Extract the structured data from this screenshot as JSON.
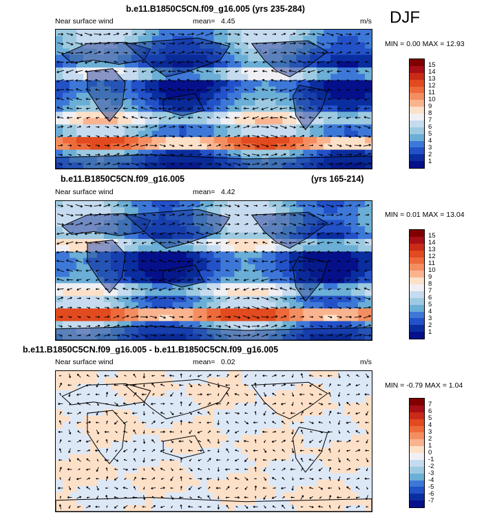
{
  "season": "DJF",
  "panels": [
    {
      "title_left": "b.e11.B1850C5CN.f09_g16.005 (yrs 235-284)",
      "title_right": "",
      "subtitle_left": "Near surface wind",
      "mean_label": "mean=",
      "mean_value": "4.45",
      "units": "m/s",
      "min_max": "MIN =  0.00 MAX =  12.93",
      "colorbar_labels": [
        "15",
        "14",
        "13",
        "12",
        "11",
        "10",
        "9",
        "8",
        "7",
        "6",
        "5",
        "4",
        "3",
        "2",
        "1"
      ],
      "colorbar_colors": [
        "#800000",
        "#a50f15",
        "#cb2a18",
        "#e24a1f",
        "#ee6a3a",
        "#f48e60",
        "#f9b48f",
        "#fde0c8",
        "#f0f0f4",
        "#c6dbef",
        "#9ecae1",
        "#6baed6",
        "#3d78d8",
        "#2251c8",
        "#0a2ea0",
        "#05108a"
      ],
      "style": "speed"
    },
    {
      "title_left": "b.e11.B1850C5CN.f09_g16.005",
      "title_right": "(yrs 165-214)",
      "subtitle_left": "Near surface wind",
      "mean_label": "mean=",
      "mean_value": "4.42",
      "units": "",
      "min_max": "MIN =  0.01 MAX =  13.04",
      "colorbar_labels": [
        "15",
        "14",
        "13",
        "12",
        "11",
        "10",
        "9",
        "8",
        "7",
        "6",
        "5",
        "4",
        "3",
        "2",
        "1"
      ],
      "colorbar_colors": [
        "#800000",
        "#a50f15",
        "#cb2a18",
        "#e24a1f",
        "#ee6a3a",
        "#f48e60",
        "#f9b48f",
        "#fde0c8",
        "#f0f0f4",
        "#c6dbef",
        "#9ecae1",
        "#6baed6",
        "#3d78d8",
        "#2251c8",
        "#0a2ea0",
        "#05108a"
      ],
      "style": "speed"
    },
    {
      "title_left": "b.e11.B1850C5CN.f09_g16.005 - b.e11.B1850C5CN.f09_g16.005",
      "title_right": "",
      "subtitle_left": "Near surface wind",
      "mean_label": "mean=",
      "mean_value": "0.02",
      "units": "m/s",
      "min_max": "MIN = -0.79 MAX =  1.04",
      "colorbar_labels": [
        "7",
        "6",
        "5",
        "4",
        "3",
        "2",
        "1",
        "0",
        "-1",
        "-2",
        "-3",
        "-4",
        "-5",
        "-6",
        "-7"
      ],
      "colorbar_colors": [
        "#800000",
        "#a50f15",
        "#cb2a18",
        "#e24a1f",
        "#ee6a3a",
        "#f48e60",
        "#f9b48f",
        "#fde0c8",
        "#f0f0f4",
        "#c6dbef",
        "#9ecae1",
        "#6baed6",
        "#3d78d8",
        "#2251c8",
        "#0a2ea0",
        "#05108a"
      ],
      "style": "diff"
    }
  ],
  "chart_data": [
    {
      "type": "heatmap",
      "title": "b.e11.B1850C5CN.f09_g16.005 (yrs 235-284)",
      "variable": "Near surface wind",
      "units": "m/s",
      "mean": 4.45,
      "min": 0.0,
      "max": 12.93,
      "colorbar_levels": [
        1,
        2,
        3,
        4,
        5,
        6,
        7,
        8,
        9,
        10,
        11,
        12,
        13,
        14,
        15
      ],
      "overlay": "wind vectors"
    },
    {
      "type": "heatmap",
      "title": "b.e11.B1850C5CN.f09_g16.005 (yrs 165-214)",
      "variable": "Near surface wind",
      "mean": 4.42,
      "min": 0.01,
      "max": 13.04,
      "colorbar_levels": [
        1,
        2,
        3,
        4,
        5,
        6,
        7,
        8,
        9,
        10,
        11,
        12,
        13,
        14,
        15
      ],
      "overlay": "wind vectors"
    },
    {
      "type": "heatmap",
      "title": "b.e11.B1850C5CN.f09_g16.005 - b.e11.B1850C5CN.f09_g16.005",
      "variable": "Near surface wind",
      "units": "m/s",
      "mean": 0.02,
      "min": -0.79,
      "max": 1.04,
      "colorbar_levels": [
        -7,
        -6,
        -5,
        -4,
        -3,
        -2,
        -1,
        0,
        1,
        2,
        3,
        4,
        5,
        6,
        7
      ],
      "overlay": "wind vectors"
    }
  ]
}
